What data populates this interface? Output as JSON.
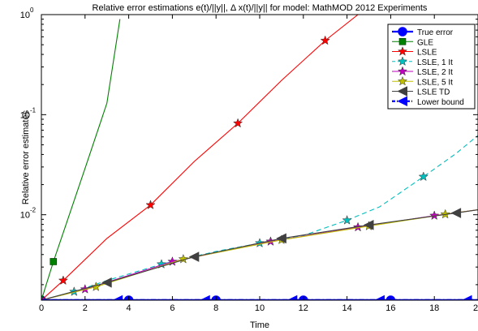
{
  "chart_data": {
    "type": "line",
    "title": "Relative error estimations e(t)/||y||, Δ x(t)/||y|| for model: MathMOD 2012 Experiments",
    "xlabel": "Time",
    "ylabel": "Relative error estimates",
    "xlim": [
      0,
      20
    ],
    "ylim": [
      0.0014,
      1
    ],
    "yscale": "log",
    "xticks": [
      0,
      2,
      4,
      6,
      8,
      10,
      12,
      14,
      16,
      18
    ],
    "xtick_labels": [
      "0",
      "2",
      "4",
      "6",
      "8",
      "10",
      "12",
      "14",
      "16",
      "18"
    ],
    "x_last_label": "2",
    "yticks": [
      0.01,
      0.1,
      1
    ],
    "ytick_labels": [
      "10",
      "10",
      "10"
    ],
    "ytick_exponents": [
      "-2",
      "-1",
      "0"
    ],
    "grid": false,
    "legend_position": "top-right",
    "series": [
      {
        "name": "True error",
        "color": "#0000ff",
        "line": "solid",
        "marker": "circle",
        "x": [
          0,
          4,
          8,
          12,
          16,
          20
        ],
        "y": [
          0.0014,
          0.0014,
          0.0014,
          0.0014,
          0.0014,
          0.0014
        ],
        "markers_x": [
          0,
          4,
          8,
          12,
          16
        ]
      },
      {
        "name": "GLE",
        "color": "#008000",
        "line": "solid",
        "marker": "square",
        "x": [
          0,
          0.55,
          1,
          2,
          3,
          3.6
        ],
        "y": [
          0.0014,
          0.0034,
          0.0066,
          0.029,
          0.13,
          0.9
        ],
        "markers_x": [
          0.55
        ]
      },
      {
        "name": "LSLE",
        "color": "#ff0000",
        "line": "solid",
        "marker": "star",
        "x": [
          0,
          1,
          3,
          5,
          7,
          9,
          11,
          13,
          14.5
        ],
        "y": [
          0.0014,
          0.0022,
          0.0058,
          0.0125,
          0.034,
          0.082,
          0.22,
          0.55,
          1.0
        ],
        "markers_x": [
          1,
          5,
          9,
          13
        ]
      },
      {
        "name": "LSLE, 1 It",
        "color": "#00bfbf",
        "line": "dashed",
        "marker": "star",
        "x": [
          0,
          1.5,
          3,
          5.5,
          8,
          10,
          12,
          14,
          15.5,
          17.5,
          19,
          20
        ],
        "y": [
          0.0014,
          0.0017,
          0.0022,
          0.0032,
          0.0043,
          0.0052,
          0.0062,
          0.0088,
          0.012,
          0.024,
          0.041,
          0.062
        ],
        "markers_x": [
          1.5,
          5.5,
          10,
          14,
          17.5
        ]
      },
      {
        "name": "LSLE, 2 It",
        "color": "#bf00bf",
        "line": "solid",
        "marker": "star",
        "x": [
          0,
          2,
          6,
          10.5,
          14.5,
          18,
          20
        ],
        "y": [
          0.0014,
          0.0018,
          0.0034,
          0.0054,
          0.0075,
          0.0098,
          0.0112
        ],
        "markers_x": [
          2,
          6,
          10.5,
          14.5,
          18
        ]
      },
      {
        "name": "LSLE, 5 It",
        "color": "#bfbf00",
        "line": "solid",
        "marker": "star",
        "x": [
          0,
          2.5,
          6.5,
          11,
          15,
          18.5,
          20
        ],
        "y": [
          0.0014,
          0.0019,
          0.0036,
          0.0056,
          0.0077,
          0.0101,
          0.0112
        ],
        "markers_x": [
          2.5,
          6.5,
          11,
          15,
          18.5
        ]
      },
      {
        "name": "LSLE TD",
        "color": "#404040",
        "line": "solid",
        "marker": "triangle-left",
        "x": [
          0,
          3,
          7,
          11,
          15,
          19,
          20
        ],
        "y": [
          0.0014,
          0.0021,
          0.0038,
          0.0058,
          0.0079,
          0.0104,
          0.0112
        ],
        "markers_x": [
          3,
          7,
          11,
          15,
          19
        ]
      },
      {
        "name": "Lower bound",
        "color": "#0000ff",
        "line": "dashdot",
        "marker": "triangle-left",
        "x": [
          0,
          3.5,
          7.5,
          11.5,
          15.5,
          19.5,
          20
        ],
        "y": [
          0.0014,
          0.0014,
          0.0014,
          0.0014,
          0.0014,
          0.0014,
          0.0014
        ],
        "markers_x": [
          3.5,
          7.5,
          11.5,
          15.5,
          19.5
        ]
      }
    ]
  }
}
